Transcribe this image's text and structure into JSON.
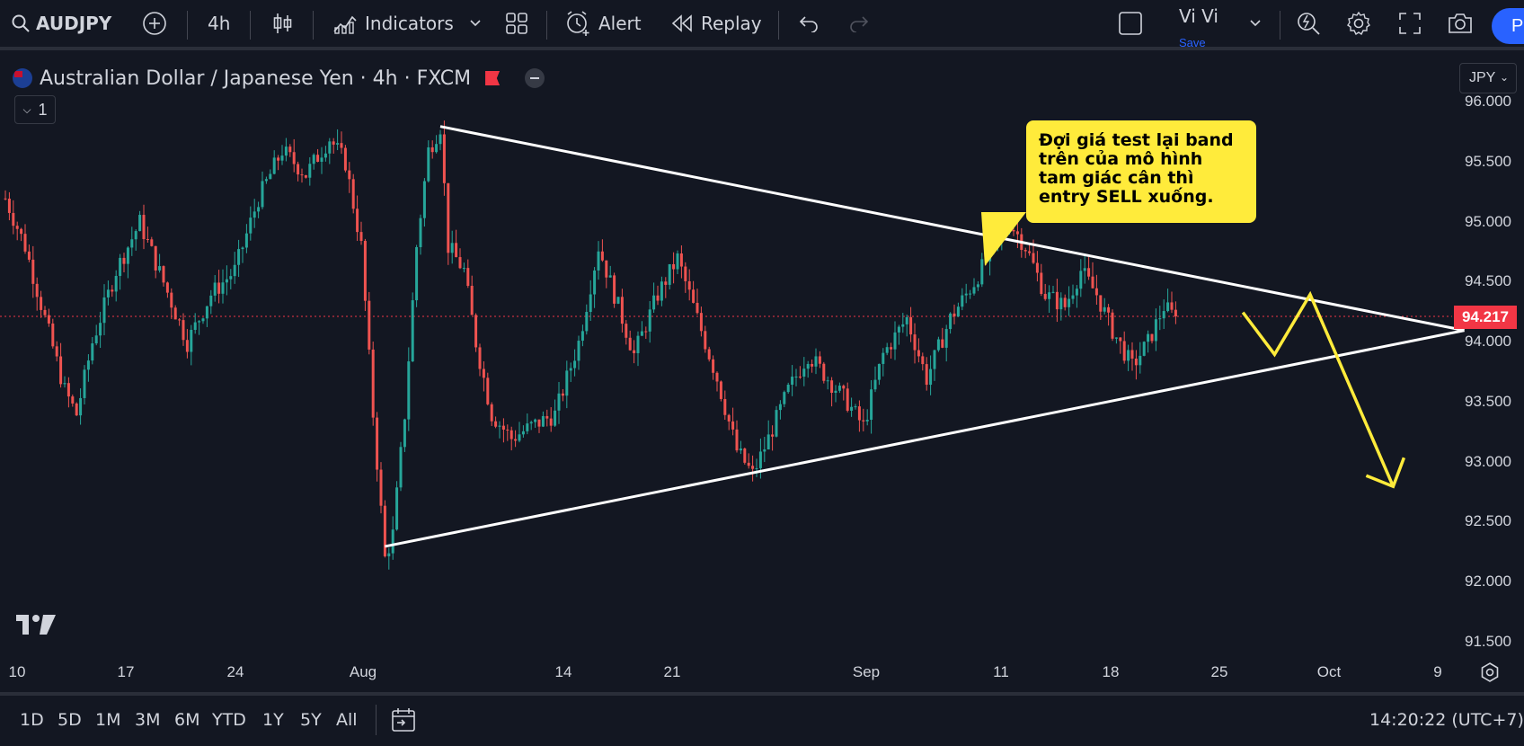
{
  "toolbar": {
    "symbol": "AUDJPY",
    "interval": "4h",
    "indicators_label": "Indicators",
    "alert_label": "Alert",
    "replay_label": "Replay",
    "layout_name": "Vi Vi",
    "save_label": "Save",
    "publish_label": "Pu"
  },
  "legend": {
    "title": "Australian Dollar / Japanese Yen · 4h · FXCM",
    "collapse_count": "1"
  },
  "currency": "JPY",
  "last_price": "94.217",
  "y_ticks": [
    "96.000",
    "95.500",
    "95.000",
    "94.500",
    "94.000",
    "93.500",
    "93.000",
    "92.500",
    "92.000",
    "91.500"
  ],
  "x_ticks": [
    "10",
    "17",
    "24",
    "Aug",
    "14",
    "21",
    "Sep",
    "11",
    "18",
    "25",
    "Oct",
    "9"
  ],
  "annotation": "Đợi giá test lại band trên của mô hình tam giác cân thì entry SELL xuống.",
  "ranges": [
    "1D",
    "5D",
    "1M",
    "3M",
    "6M",
    "YTD",
    "1Y",
    "5Y",
    "All"
  ],
  "clock": "14:20:22 (UTC+7)",
  "colors": {
    "up": "#26a69a",
    "down": "#ef5350",
    "background": "#131722",
    "accent": "#2962ff",
    "annotation": "#ffeb3b",
    "price_line": "#f23645"
  },
  "chart_data": {
    "type": "candlestick",
    "title": "Australian Dollar / Japanese Yen · 4h · FXCM",
    "ylim": [
      91.4,
      96.1
    ],
    "last": 94.217,
    "x_labels": [
      "10",
      "17",
      "24",
      "Aug",
      "14",
      "21",
      "Sep",
      "11",
      "18",
      "25",
      "Oct",
      "9"
    ],
    "path": [
      [
        0,
        95.2
      ],
      [
        5,
        94.8
      ],
      [
        10,
        94.2
      ],
      [
        15,
        93.6
      ],
      [
        18,
        93.4
      ],
      [
        22,
        94.0
      ],
      [
        28,
        94.6
      ],
      [
        34,
        95.0
      ],
      [
        40,
        94.5
      ],
      [
        46,
        94.0
      ],
      [
        52,
        94.4
      ],
      [
        58,
        94.6
      ],
      [
        64,
        95.2
      ],
      [
        70,
        95.6
      ],
      [
        76,
        95.4
      ],
      [
        82,
        95.7
      ],
      [
        86,
        95.5
      ],
      [
        90,
        94.8
      ],
      [
        93,
        93.4
      ],
      [
        96,
        92.2
      ],
      [
        98,
        92.4
      ],
      [
        101,
        93.4
      ],
      [
        104,
        94.8
      ],
      [
        107,
        95.6
      ],
      [
        110,
        95.8
      ],
      [
        112,
        94.8
      ],
      [
        116,
        94.6
      ],
      [
        119,
        94.0
      ],
      [
        123,
        93.4
      ],
      [
        128,
        93.2
      ],
      [
        133,
        93.3
      ],
      [
        139,
        93.4
      ],
      [
        145,
        94.0
      ],
      [
        150,
        94.8
      ],
      [
        154,
        94.4
      ],
      [
        159,
        93.9
      ],
      [
        165,
        94.4
      ],
      [
        170,
        94.7
      ],
      [
        175,
        94.2
      ],
      [
        180,
        93.7
      ],
      [
        185,
        93.1
      ],
      [
        189,
        92.9
      ],
      [
        193,
        93.2
      ],
      [
        198,
        93.6
      ],
      [
        203,
        93.9
      ],
      [
        208,
        93.7
      ],
      [
        213,
        93.5
      ],
      [
        217,
        93.3
      ],
      [
        222,
        93.9
      ],
      [
        228,
        94.2
      ],
      [
        233,
        93.7
      ],
      [
        239,
        94.2
      ],
      [
        245,
        94.5
      ],
      [
        250,
        94.8
      ],
      [
        254,
        95.0
      ],
      [
        258,
        94.8
      ],
      [
        263,
        94.4
      ],
      [
        268,
        94.3
      ],
      [
        272,
        94.6
      ],
      [
        276,
        94.4
      ],
      [
        280,
        94.1
      ],
      [
        285,
        93.8
      ],
      [
        289,
        94.0
      ],
      [
        293,
        94.3
      ],
      [
        296,
        94.2
      ]
    ],
    "drawings": {
      "resistance_line": {
        "from": [
          110,
          95.8
        ],
        "to": [
          369,
          94.1
        ]
      },
      "support_line": {
        "from": [
          96,
          92.3
        ],
        "to": [
          369,
          94.1
        ]
      },
      "projection": [
        [
          313,
          94.25
        ],
        [
          321,
          93.9
        ],
        [
          330,
          94.4
        ],
        [
          351,
          92.8
        ]
      ]
    }
  }
}
